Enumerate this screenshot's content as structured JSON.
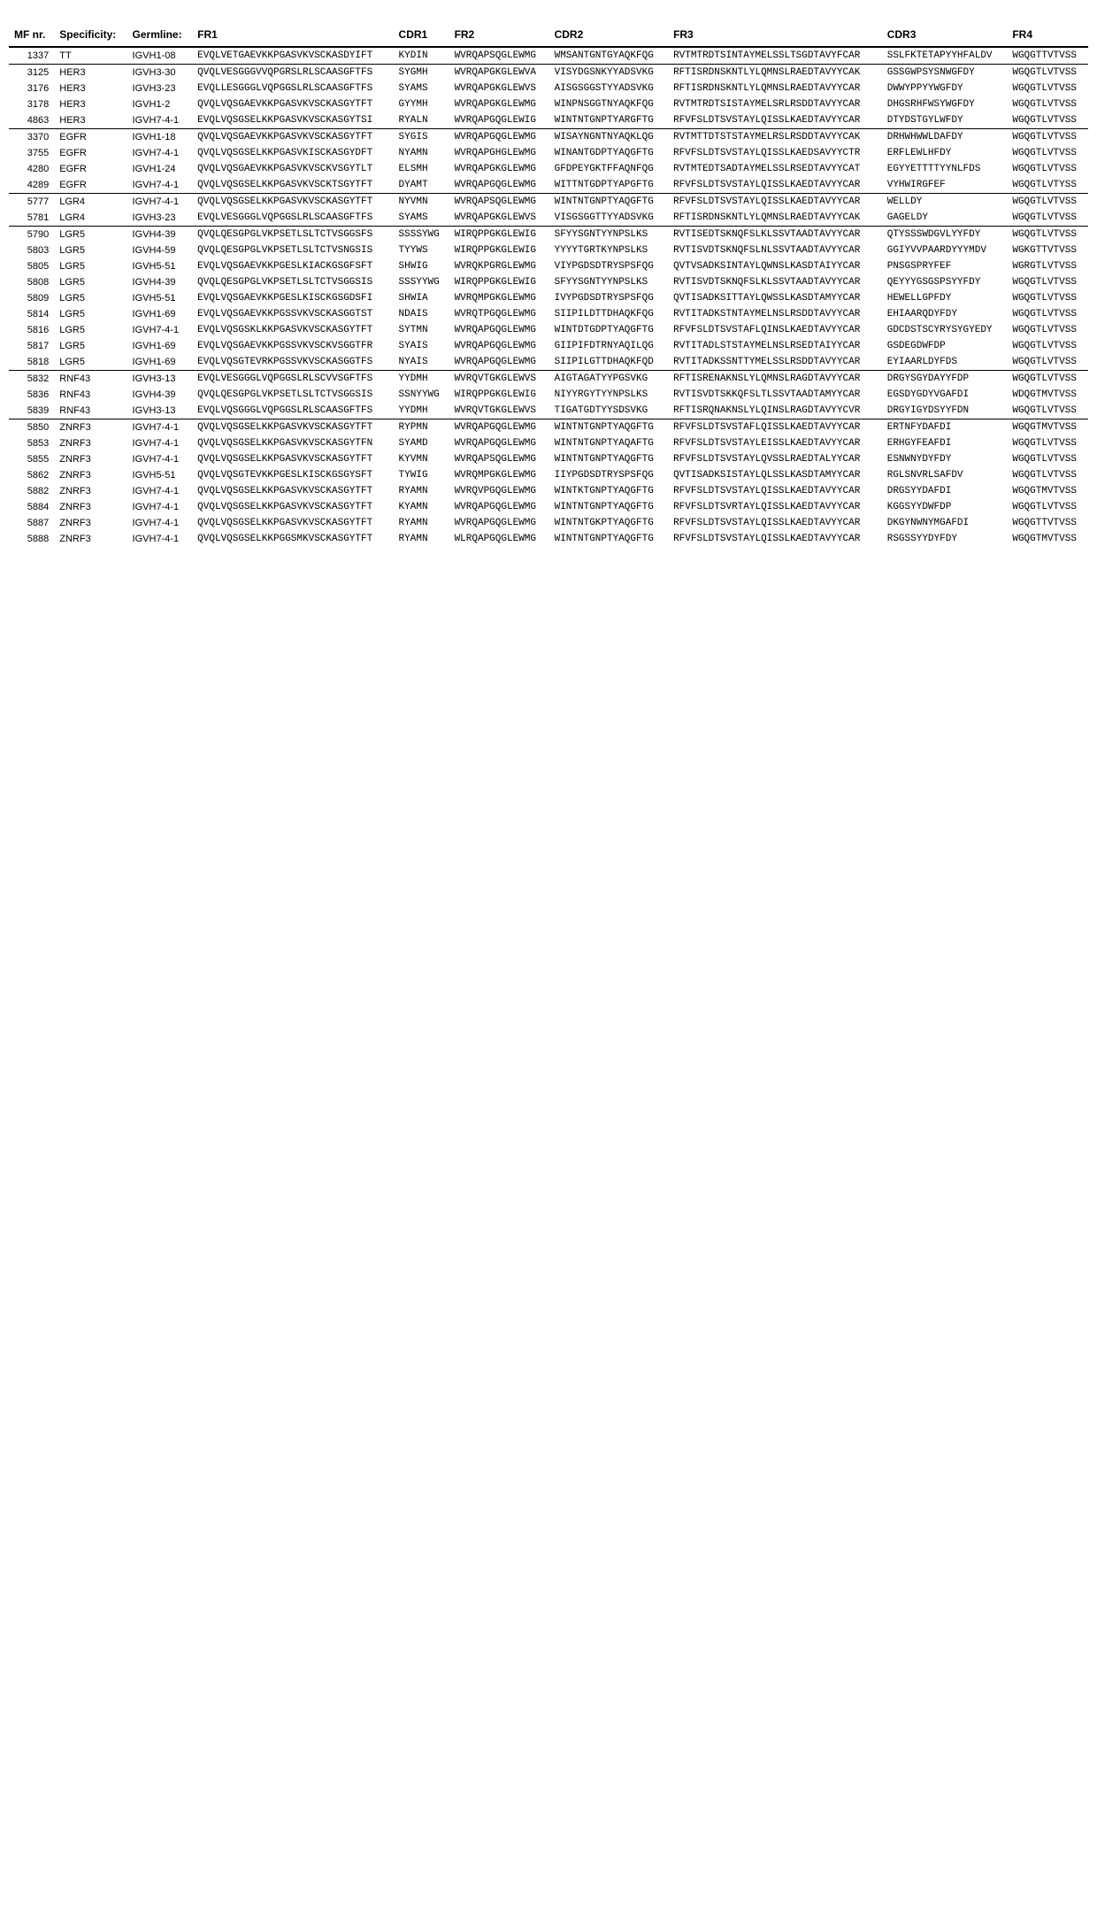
{
  "table": {
    "columns": [
      "MF nr.",
      "Specificity:",
      "Germline:",
      "FR1",
      "CDR1",
      "FR2",
      "CDR2",
      "FR3",
      "CDR3",
      "FR4"
    ],
    "col_classes": [
      "mf",
      "spec",
      "germ",
      "mono col-fr1",
      "mono",
      "mono",
      "mono",
      "mono col-fr3",
      "mono",
      "mono"
    ],
    "header_fontsize": 12,
    "header_fontweight": 700,
    "body_fontsize": 11,
    "mono_font": "Courier New",
    "background_color": "#ffffff",
    "rule_color": "#000000",
    "groups": [
      {
        "rows": [
          {
            "mf": "1337",
            "spec": "TT",
            "germ": "IGVH1-08",
            "fr1": "EVQLVETGAEVKKPGASVKVSCKASDYIFT",
            "cdr1": "KYDIN",
            "fr2": "WVRQAPSQGLEWMG",
            "cdr2": "WMSANTGNTGYAQKFQG",
            "fr3": "RVTMTRDTSINTAYMELSSLTSGDTAVYFCAR",
            "cdr3": "SSLFKTETAPYYHFALDV",
            "fr4": "WGQGTTVTVSS"
          }
        ]
      },
      {
        "rows": [
          {
            "mf": "3125",
            "spec": "HER3",
            "germ": "IGVH3-30",
            "fr1": "QVQLVESGGGVVQPGRSLRLSCAASGFTFS",
            "cdr1": "SYGMH",
            "fr2": "WVRQAPGKGLEWVA",
            "cdr2": "VISYDGSNKYYADSVKG",
            "fr3": "RFTISRDNSKNTLYLQMNSLRAEDTAVYYCAK",
            "cdr3": "GSSGWPSYSNWGFDY",
            "fr4": "WGQGTLVTVSS"
          },
          {
            "mf": "3176",
            "spec": "HER3",
            "germ": "IGVH3-23",
            "fr1": "EVQLLESGGGLVQPGGSLRLSCAASGFTFS",
            "cdr1": "SYAMS",
            "fr2": "WVRQAPGKGLEWVS",
            "cdr2": "AISGSGGSTYYADSVKG",
            "fr3": "RFTISRDNSKNTLYLQMNSLRAEDTAVYYCAR",
            "cdr3": "DWWYPPYYWGFDY",
            "fr4": "WGQGTLVTVSS"
          },
          {
            "mf": "3178",
            "spec": "HER3",
            "germ": "IGVH1-2",
            "fr1": "QVQLVQSGAEVKKPGASVKVSCKASGYTFT",
            "cdr1": "GYYMH",
            "fr2": "WVRQAPGKGLEWMG",
            "cdr2": "WINPNSGGTNYAQKFQG",
            "fr3": "RVTMTRDTSISTAYMELSRLRSDDTAVYYCAR",
            "cdr3": "DHGSRHFWSYWGFDY",
            "fr4": "WGQGTLVTVSS"
          },
          {
            "mf": "4863",
            "spec": "HER3",
            "germ": "IGVH7-4-1",
            "fr1": "EVQLVQSGSELKKPGASVKVSCKASGYTSI",
            "cdr1": "RYALN",
            "fr2": "WVRQAPGQGLEWIG",
            "cdr2": "WINTNTGNPTYARGFTG",
            "fr3": "RFVFSLDTSVSTAYLQISSLKAEDTAVYYCAR",
            "cdr3": "DTYDSTGYLWFDY",
            "fr4": "WGQGTLVTVSS"
          }
        ]
      },
      {
        "rows": [
          {
            "mf": "3370",
            "spec": "EGFR",
            "germ": "IGVH1-18",
            "fr1": "QVQLVQSGAEVKKPGASVKVSCKASGYTFT",
            "cdr1": "SYGIS",
            "fr2": "WVRQAPGQGLEWMG",
            "cdr2": "WISAYNGNTNYAQKLQG",
            "fr3": "RVTMTTDTSTSTAYMELRSLRSDDTAVYYCAK",
            "cdr3": "DRHWHWWLDAFDY",
            "fr4": "WGQGTLVTVSS"
          },
          {
            "mf": "3755",
            "spec": "EGFR",
            "germ": "IGVH7-4-1",
            "fr1": "QVQLVQSGSELKKPGASVKISCKASGYDFT",
            "cdr1": "NYAMN",
            "fr2": "WVRQAPGHGLEWMG",
            "cdr2": "WINANTGDPTYAQGFTG",
            "fr3": "RFVFSLDTSVSTAYLQISSLKAEDSAVYYCTR",
            "cdr3": "ERFLEWLHFDY",
            "fr4": "WGQGTLVTVSS"
          },
          {
            "mf": "4280",
            "spec": "EGFR",
            "germ": "IGVH1-24",
            "fr1": "QVQLVQSGAEVKKPGASVKVSCKVSGYTLT",
            "cdr1": "ELSMH",
            "fr2": "WVRQAPGKGLEWMG",
            "cdr2": "GFDPEYGKTFFAQNFQG",
            "fr3": "RVTMTEDTSADTAYMELSSLRSEDTAVYYCAT",
            "cdr3": "EGYYETTTTYYNLFDS",
            "fr4": "WGQGTLVTVSS"
          },
          {
            "mf": "4289",
            "spec": "EGFR",
            "germ": "IGVH7-4-1",
            "fr1": "QVQLVQSGSELKKPGASVKVSCKTSGYTFT",
            "cdr1": "DYAMT",
            "fr2": "WVRQAPGQGLEWMG",
            "cdr2": "WITTNTGDPTYAPGFTG",
            "fr3": "RFVFSLDTSVSTAYLQISSLKAEDTAVYYCAR",
            "cdr3": "VYHWIRGFEF",
            "fr4": "WGQGTLVTYSS"
          }
        ]
      },
      {
        "rows": [
          {
            "mf": "5777",
            "spec": "LGR4",
            "germ": "IGVH7-4-1",
            "fr1": "QVQLVQSGSELKKPGASVKVSCKASGYTFT",
            "cdr1": "NYVMN",
            "fr2": "WVRQAPSQGLEWMG",
            "cdr2": "WINTNTGNPTYAQGFTG",
            "fr3": "RFVFSLDTSVSTAYLQISSLKAEDTAVYYCAR",
            "cdr3": "WELLDY",
            "fr4": "WGQGTLVTVSS"
          },
          {
            "mf": "5781",
            "spec": "LGR4",
            "germ": "IGVH3-23",
            "fr1": "EVQLVESGGGLVQPGGSLRLSCAASGFTFS",
            "cdr1": "SYAMS",
            "fr2": "WVRQAPGKGLEWVS",
            "cdr2": "VISGSGGTTYYADSVKG",
            "fr3": "RFTISRDNSKNTLYLQMNSLRAEDTAVYYCAK",
            "cdr3": "GAGELDY",
            "fr4": "WGQGTLVTVSS"
          }
        ]
      },
      {
        "rows": [
          {
            "mf": "5790",
            "spec": "LGR5",
            "germ": "IGVH4-39",
            "fr1": "QVQLQESGPGLVKPSETLSLTCTVSGGSFS",
            "cdr1": "SSSSYWG",
            "fr2": "WIRQPPGKGLEWIG",
            "cdr2": "SFYYSGNTYYNPSLKS",
            "fr3": "RVTISEDTSKNQFSLKLSSVTAADTAVYYCAR",
            "cdr3": "QTYSSSWDGVLYYFDY",
            "fr4": "WGQGTLVTVSS"
          },
          {
            "mf": "5803",
            "spec": "LGR5",
            "germ": "IGVH4-59",
            "fr1": "QVQLQESGPGLVKPSETLSLTCTVSNGSIS",
            "cdr1": "TYYWS",
            "fr2": "WIRQPPGKGLEWIG",
            "cdr2": "YYYYTGRTKYNPSLKS",
            "fr3": "RVTISVDTSKNQFSLNLSSVTAADTAVYYCAR",
            "cdr3": "GGIYVVPAARDYYYMDV",
            "fr4": "WGKGTTVTVSS"
          },
          {
            "mf": "5805",
            "spec": "LGR5",
            "germ": "IGVH5-51",
            "fr1": "EVQLVQSGAEVKKPGESLKIACKGSGFSFT",
            "cdr1": "SHWIG",
            "fr2": "WVRQKPGRGLEWMG",
            "cdr2": "VIYPGDSDTRYSPSFQG",
            "fr3": "QVTVSADKSINTAYLQWNSLKASDTAIYYCAR",
            "cdr3": "PNSGSPRYFEF",
            "fr4": "WGRGTLVTVSS"
          },
          {
            "mf": "5808",
            "spec": "LGR5",
            "germ": "IGVH4-39",
            "fr1": "QVQLQESGPGLVKPSETLSLTCTVSGGSIS",
            "cdr1": "SSSYYWG",
            "fr2": "WIRQPPGKGLEWIG",
            "cdr2": "SFYYSGNTYYNPSLKS",
            "fr3": "RVTISVDTSKNQFSLKLSSVTAADTAVYYCAR",
            "cdr3": "QEYYYGSGSPSYYFDY",
            "fr4": "WGQGTLVTVSS"
          },
          {
            "mf": "5809",
            "spec": "LGR5",
            "germ": "IGVH5-51",
            "fr1": "EVQLVQSGAEVKKPGESLKISCKGSGDSFI",
            "cdr1": "SHWIA",
            "fr2": "WVRQMPGKGLEWMG",
            "cdr2": "IVYPGDSDTRYSPSFQG",
            "fr3": "QVTISADKSITTAYLQWSSLKASDTAMYYCAR",
            "cdr3": "HEWELLGPFDY",
            "fr4": "WGQGTLVTVSS"
          },
          {
            "mf": "5814",
            "spec": "LGR5",
            "germ": "IGVH1-69",
            "fr1": "EVQLVQSGAEVKKPGSSVKVSCKASGGTST",
            "cdr1": "NDAIS",
            "fr2": "WVRQTPGQGLEWMG",
            "cdr2": "SIIPILDTTDHAQKFQG",
            "fr3": "RVTITADKSTNTAYMELNSLRSDDTAVYYCAR",
            "cdr3": "EHIAARQDYFDY",
            "fr4": "WGQGTLVTVSS"
          },
          {
            "mf": "5816",
            "spec": "LGR5",
            "germ": "IGVH7-4-1",
            "fr1": "EVQLVQSGSKLKKPGASVKVSCKASGYTFT",
            "cdr1": "SYTMN",
            "fr2": "WVRQAPGQGLEWMG",
            "cdr2": "WINTDTGDPTYAQGFTG",
            "fr3": "RFVFSLDTSVSTAFLQINSLKAEDTAVYYCAR",
            "cdr3": "GDCDSTSCYRYSYGYEDY",
            "fr4": "WGQGTLVTVSS"
          },
          {
            "mf": "5817",
            "spec": "LGR5",
            "germ": "IGVH1-69",
            "fr1": "EVQLVQSGAEVKKPGSSVKVSCKVSGGTFR",
            "cdr1": "SYAIS",
            "fr2": "WVRQAPGQGLEWMG",
            "cdr2": "GIIPIFDTRNYAQILQG",
            "fr3": "RVTITADLSTSTAYMELNSLRSEDTAIYYCAR",
            "cdr3": "GSDEGDWFDP",
            "fr4": "WGQGTLVTVSS"
          },
          {
            "mf": "5818",
            "spec": "LGR5",
            "germ": "IGVH1-69",
            "fr1": "EVQLVQSGTEVRKPGSSVKVSCKASGGTFS",
            "cdr1": "NYAIS",
            "fr2": "WVRQAPGQGLEWMG",
            "cdr2": "SIIPILGTTDHAQKFQD",
            "fr3": "RVTITADKSSNTTYMELSSLRSDDTAVYYCAR",
            "cdr3": "EYIAARLDYFDS",
            "fr4": "WGQGTLVTVSS"
          }
        ]
      },
      {
        "rows": [
          {
            "mf": "5832",
            "spec": "RNF43",
            "germ": "IGVH3-13",
            "fr1": "EVQLVESGGGLVQPGGSLRLSCVVSGFTFS",
            "cdr1": "YYDMH",
            "fr2": "WVRQVTGKGLEWVS",
            "cdr2": "AIGTAGATYYPGSVKG",
            "fr3": "RFTISRENAKNSLYLQMNSLRAGDTAVYYCAR",
            "cdr3": "DRGYSGYDAYYFDP",
            "fr4": "WGQGTLVTVSS"
          },
          {
            "mf": "5836",
            "spec": "RNF43",
            "germ": "IGVH4-39",
            "fr1": "QVQLQESGPGLVKPSETLSLTCTVSGGSIS",
            "cdr1": "SSNYYWG",
            "fr2": "WIRQPPGKGLEWIG",
            "cdr2": "NIYYRGYTYYNPSLKS",
            "fr3": "RVTISVDTSKKQFSLTLSSVTAADTAMYYCAR",
            "cdr3": "EGSDYGDYVGAFDI",
            "fr4": "WDQGTMVTVSS"
          },
          {
            "mf": "5839",
            "spec": "RNF43",
            "germ": "IGVH3-13",
            "fr1": "EVQLVQSGGGLVQPGGSLRLSCAASGFTFS",
            "cdr1": "YYDMH",
            "fr2": "WVRQVTGKGLEWVS",
            "cdr2": "TIGATGDTYYSDSVKG",
            "fr3": "RFTISRQNAKNSLYLQINSLRAGDTAVYYCVR",
            "cdr3": "DRGYIGYDSYYFDN",
            "fr4": "WGQGTLVTVSS"
          }
        ]
      },
      {
        "rows": [
          {
            "mf": "5850",
            "spec": "ZNRF3",
            "germ": "IGVH7-4-1",
            "fr1": "QVQLVQSGSELKKPGASVKVSCKASGYTFT",
            "cdr1": "RYPMN",
            "fr2": "WVRQAPGQGLEWMG",
            "cdr2": "WINTNTGNPTYAQGFTG",
            "fr3": "RFVFSLDTSVSTAFLQISSLKAEDTAVYYCAR",
            "cdr3": "ERTNFYDAFDI",
            "fr4": "WGQGTMVTVSS"
          },
          {
            "mf": "5853",
            "spec": "ZNRF3",
            "germ": "IGVH7-4-1",
            "fr1": "QVQLVQSGSELKKPGASVKVSCKASGYTFN",
            "cdr1": "SYAMD",
            "fr2": "WVRQAPGQGLEWMG",
            "cdr2": "WINTNTGNPTYAQAFTG",
            "fr3": "RFVFSLDTSVSTAYLEISSLKAEDTAVYYCAR",
            "cdr3": "ERHGYFEAFDI",
            "fr4": "WGQGTLVTVSS"
          },
          {
            "mf": "5855",
            "spec": "ZNRF3",
            "germ": "IGVH7-4-1",
            "fr1": "QVQLVQSGSELKKPGASVKVSCKASGYTFT",
            "cdr1": "KYVMN",
            "fr2": "WVRQAPSQGLEWMG",
            "cdr2": "WINTNTGNPTYAQGFTG",
            "fr3": "RFVFSLDTSVSTAYLQVSSLRAEDTALYYCAR",
            "cdr3": "ESNWNYDYFDY",
            "fr4": "WGQGTLVTVSS"
          },
          {
            "mf": "5862",
            "spec": "ZNRF3",
            "germ": "IGVH5-51",
            "fr1": "QVQLVQSGTEVKKPGESLKISCKGSGYSFT",
            "cdr1": "TYWIG",
            "fr2": "WVRQMPGKGLEWMG",
            "cdr2": "IIYPGDSDTRYSPSFQG",
            "fr3": "QVTISADKSISTAYLQLSSLKASDTAMYYCAR",
            "cdr3": "RGLSNVRLSAFDV",
            "fr4": "WGQGTLVTVSS"
          },
          {
            "mf": "5882",
            "spec": "ZNRF3",
            "germ": "IGVH7-4-1",
            "fr1": "QVQLVQSGSELKKPGASVKVSCKASGYTFT",
            "cdr1": "RYAMN",
            "fr2": "WVRQVPGQGLEWMG",
            "cdr2": "WINTKTGNPTYAQGFTG",
            "fr3": "RFVFSLDTSVSTAYLQISSLKAEDTAVYYCAR",
            "cdr3": "DRGSYYDAFDI",
            "fr4": "WGQGTMVTVSS"
          },
          {
            "mf": "5884",
            "spec": "ZNRF3",
            "germ": "IGVH7-4-1",
            "fr1": "QVQLVQSGSELKKPGASVKVSCKASGYTFT",
            "cdr1": "KYAMN",
            "fr2": "WVRQAPGQGLEWMG",
            "cdr2": "WINTNTGNPTYAQGFTG",
            "fr3": "RFVFSLDTSVRTAYLQISSLKAEDTAVYYCAR",
            "cdr3": "KGGSYYDWFDP",
            "fr4": "WGQGTLVTVSS"
          },
          {
            "mf": "5887",
            "spec": "ZNRF3",
            "germ": "IGVH7-4-1",
            "fr1": "QVQLVQSGSELKKPGASVKVSCKASGYTFT",
            "cdr1": "RYAMN",
            "fr2": "WVRQAPGQGLEWMG",
            "cdr2": "WINTNTGKPTYAQGFTG",
            "fr3": "RFVFSLDTSVSTAYLQISSLKAEDTAVYYCAR",
            "cdr3": "DKGYNWNYMGAFDI",
            "fr4": "WGQGTTVTVSS"
          },
          {
            "mf": "5888",
            "spec": "ZNRF3",
            "germ": "IGVH7-4-1",
            "fr1": "QVQLVQSGSELKKPGGSMKVSCKASGYTFT",
            "cdr1": "RYAMN",
            "fr2": "WLRQAPGQGLEWMG",
            "cdr2": "WINTNTGNPTYAQGFTG",
            "fr3": "RFVFSLDTSVSTAYLQISSLKAEDTAVYYCAR",
            "cdr3": "RSGSSYYDYFDY",
            "fr4": "WGQGTMVTVSS"
          }
        ]
      }
    ]
  }
}
